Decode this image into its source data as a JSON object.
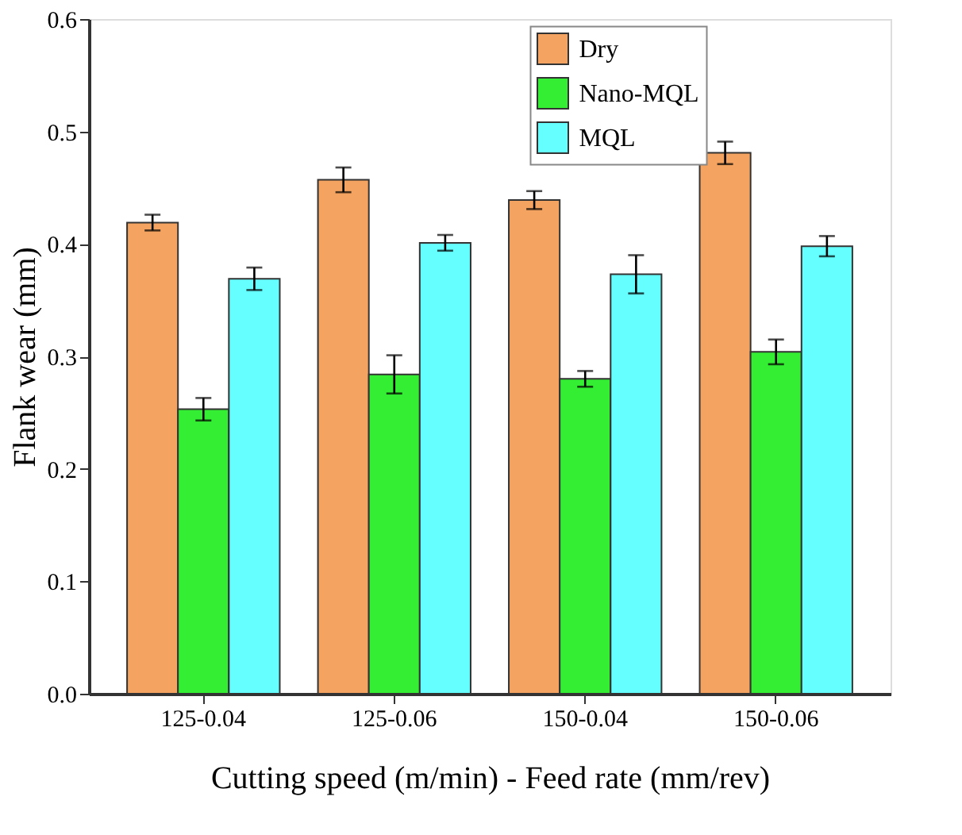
{
  "chart_data": {
    "type": "bar",
    "xlabel": "Cutting speed (m/min) - Feed rate (mm/rev)",
    "ylabel": "Flank wear (mm)",
    "categories": [
      "125-0.04",
      "125-0.06",
      "150-0.04",
      "150-0.06"
    ],
    "series": [
      {
        "name": "Dry",
        "color": "#f4a460",
        "values": [
          0.419,
          0.457,
          0.439,
          0.481
        ],
        "errors": [
          0.007,
          0.011,
          0.008,
          0.01
        ]
      },
      {
        "name": "Nano-MQL",
        "color": "#33ee33",
        "values": [
          0.253,
          0.284,
          0.28,
          0.304
        ],
        "errors": [
          0.01,
          0.017,
          0.007,
          0.011
        ]
      },
      {
        "name": "MQL",
        "color": "#66ffff",
        "values": [
          0.369,
          0.401,
          0.373,
          0.398
        ],
        "errors": [
          0.01,
          0.007,
          0.017,
          0.009
        ]
      }
    ],
    "ylim": [
      0,
      0.6
    ],
    "yticks": [
      {
        "value": 0,
        "label": "0.0"
      },
      0.1,
      0.2,
      0.3,
      0.4,
      0.5,
      0.6
    ],
    "grid": false,
    "legend": "top right"
  }
}
